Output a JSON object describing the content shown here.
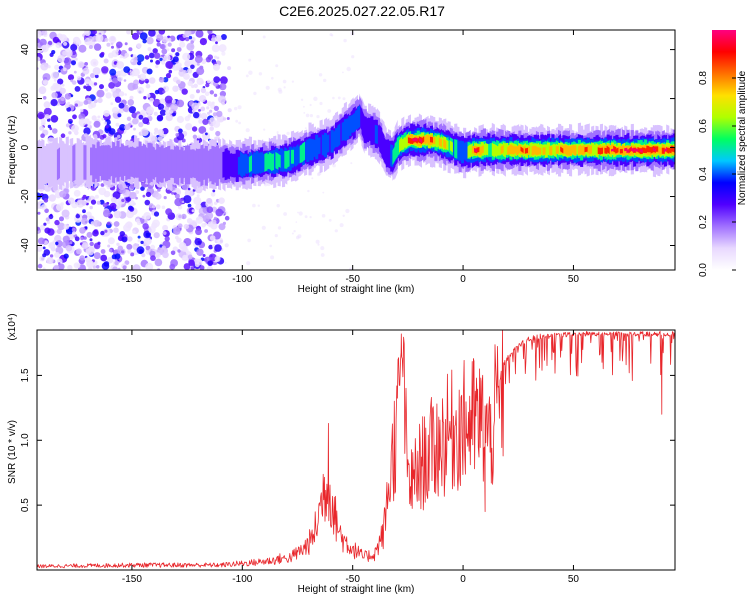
{
  "page": {
    "title": "C2E6.2025.027.22.05.R17"
  },
  "chart_data": [
    {
      "type": "heatmap",
      "title": "C2E6.2025.027.22.05.R17",
      "xlabel": "Height of straight line (km)",
      "ylabel": "Frequency (Hz)",
      "xlim": [
        -193,
        96
      ],
      "ylim": [
        -50,
        48
      ],
      "x_ticks": [
        -150,
        -100,
        -50,
        0,
        50
      ],
      "x_tick_labels": [
        "-150",
        "-100",
        "-50",
        "0",
        "50"
      ],
      "y_ticks": [
        -40,
        -20,
        0,
        20,
        40
      ],
      "y_tick_labels": [
        "-40",
        "-20",
        "0",
        "20",
        "40"
      ],
      "colorbar": {
        "label": "Normalized spectral amplitude",
        "range": [
          0,
          1
        ],
        "ticks": [
          0.0,
          0.2,
          0.4,
          0.6,
          0.8
        ],
        "tick_labels": [
          "0.0",
          "0.2",
          "0.4",
          "0.6",
          "0.8"
        ],
        "colors": [
          "#ffffff",
          "#e8d8ff",
          "#a070ff",
          "#5000ff",
          "#0000ff",
          "#00c8ff",
          "#00ff60",
          "#b0ff00",
          "#ffe000",
          "#ff7000",
          "#ff0000",
          "#ff0080"
        ]
      },
      "ridge": {
        "x": [
          -190,
          -170,
          -150,
          -130,
          -110,
          -100,
          -90,
          -80,
          -75,
          -70,
          -60,
          -55,
          -50,
          -47,
          -45,
          -40,
          -38,
          -35,
          -32,
          -30,
          -25,
          -20,
          -15,
          -10,
          -5,
          0,
          5,
          10,
          20,
          40,
          60,
          80,
          96
        ],
        "y": [
          -7,
          -6,
          -6,
          -7,
          -7,
          -7,
          -6,
          -5,
          -3,
          -1,
          2,
          6,
          10,
          13,
          8,
          6,
          4,
          -2,
          -4,
          0,
          3,
          3,
          3,
          2,
          0,
          -2,
          -1,
          -1,
          -1,
          -1,
          -1,
          -1,
          -1
        ],
        "amplitude": [
          0.1,
          0.12,
          0.15,
          0.15,
          0.2,
          0.4,
          0.45,
          0.5,
          0.45,
          0.4,
          0.35,
          0.35,
          0.4,
          0.3,
          0.3,
          0.35,
          0.3,
          0.3,
          0.45,
          0.55,
          0.8,
          0.95,
          0.8,
          0.7,
          0.5,
          0.45,
          0.85,
          0.6,
          0.7,
          0.75,
          0.8,
          0.85,
          0.9
        ]
      }
    },
    {
      "type": "line",
      "title": "",
      "xlabel": "Height of straight line (km)",
      "ylabel": "SNR (10 * v/v)",
      "scale_note": "(x10⁴)",
      "xlim": [
        -193,
        96
      ],
      "ylim": [
        0,
        1.85
      ],
      "x_ticks": [
        -150,
        -100,
        -50,
        0,
        50
      ],
      "x_tick_labels": [
        "-150",
        "-100",
        "-50",
        "0",
        "50"
      ],
      "y_ticks": [
        0.5,
        1.0,
        1.5
      ],
      "y_tick_labels": [
        "0.5",
        "1.0",
        "1.5"
      ],
      "series": [
        {
          "color": "#e8262b",
          "envelope": {
            "x": [
              -193,
              -150,
              -110,
              -95,
              -85,
              -78,
              -72,
              -68,
              -65,
              -63,
              -61,
              -58,
              -55,
              -50,
              -45,
              -40,
              -36,
              -33,
              -30,
              -28,
              -27,
              -25,
              -23,
              -20,
              -15,
              -10,
              -5,
              0,
              5,
              10,
              12,
              15,
              20,
              25,
              30,
              35,
              40,
              50,
              60,
              70,
              80,
              90,
              96
            ],
            "y": [
              0.03,
              0.04,
              0.04,
              0.06,
              0.08,
              0.12,
              0.2,
              0.3,
              0.55,
              0.75,
              0.8,
              0.5,
              0.3,
              0.2,
              0.12,
              0.15,
              0.35,
              0.9,
              1.35,
              1.7,
              1.6,
              0.9,
              0.8,
              0.95,
              1.1,
              1.2,
              1.3,
              1.35,
              1.4,
              1.35,
              1.2,
              1.5,
              1.65,
              1.75,
              1.8,
              1.82,
              1.83,
              1.84,
              1.84,
              1.84,
              1.84,
              1.84,
              1.84
            ]
          },
          "spikes": [
            {
              "x": -61,
              "y": 1.13
            },
            {
              "x": -28,
              "y": 1.82
            },
            {
              "x": -27,
              "y": 1.75
            },
            {
              "x": 10,
              "y": 0.45
            },
            {
              "x": 90,
              "y": 1.2
            }
          ]
        }
      ]
    }
  ]
}
